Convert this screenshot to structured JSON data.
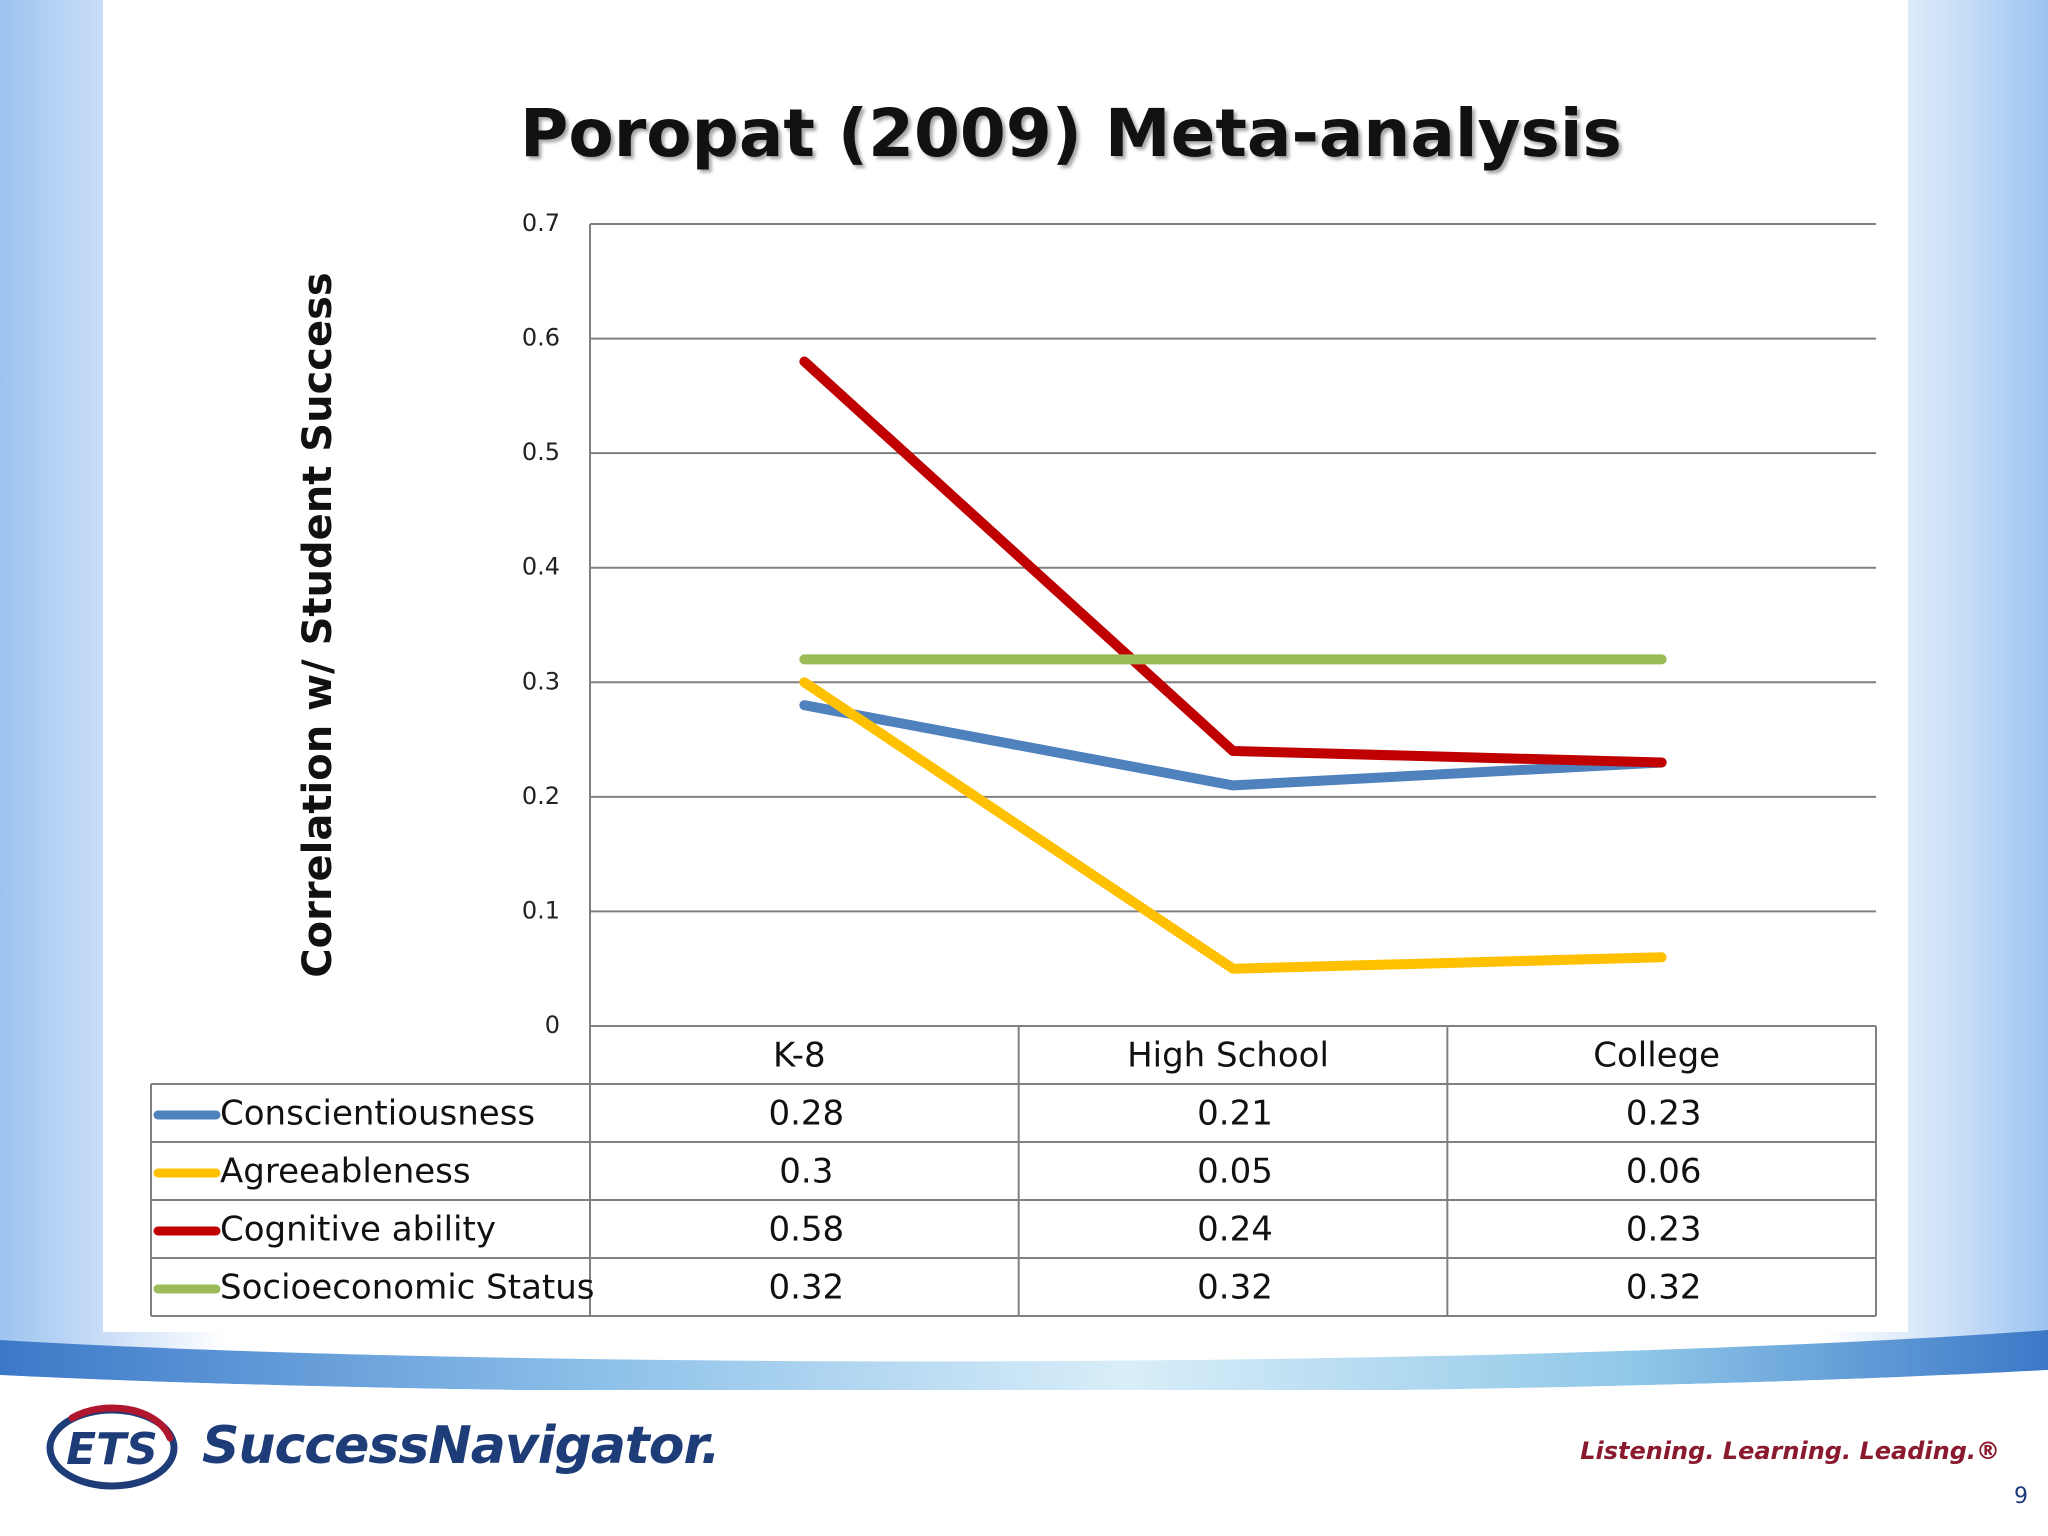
{
  "slide": {
    "title": "Poropat (2009) Meta-analysis",
    "page_number": "9"
  },
  "footer": {
    "logo_text": "ETS",
    "product_name": "SuccessNavigator",
    "product_trademark": ".",
    "tagline": "Listening. Learning. Leading.®"
  },
  "colors": {
    "conscientiousness": "#4f81bd",
    "agreeableness": "#ffc000",
    "cognitive": "#c00000",
    "ses": "#9bbb59",
    "grid": "#808080",
    "ets_navy": "#1d3c78",
    "ets_red": "#b0162d"
  },
  "chart_data": {
    "type": "line",
    "title": "Poropat (2009) Meta-analysis",
    "xlabel": "",
    "ylabel": "Correlation w/ Student Success",
    "ylim": [
      0,
      0.7
    ],
    "yticks": [
      "0",
      "0.1",
      "0.2",
      "0.3",
      "0.4",
      "0.5",
      "0.6",
      "0.7"
    ],
    "grid": true,
    "legend": "data-table",
    "categories": [
      "K-8",
      "High School",
      "College"
    ],
    "series": [
      {
        "name": "Conscientiousness",
        "key": "conscientiousness",
        "values": [
          0.28,
          0.21,
          0.23
        ],
        "labels": [
          "0.28",
          "0.21",
          "0.23"
        ]
      },
      {
        "name": "Agreeableness",
        "key": "agreeableness",
        "values": [
          0.3,
          0.05,
          0.06
        ],
        "labels": [
          "0.3",
          "0.05",
          "0.06"
        ]
      },
      {
        "name": "Cognitive ability",
        "key": "cognitive",
        "values": [
          0.58,
          0.24,
          0.23
        ],
        "labels": [
          "0.58",
          "0.24",
          "0.23"
        ]
      },
      {
        "name": "Socioeconomic Status",
        "key": "ses",
        "values": [
          0.32,
          0.32,
          0.32
        ],
        "labels": [
          "0.32",
          "0.32",
          "0.32"
        ]
      }
    ]
  }
}
